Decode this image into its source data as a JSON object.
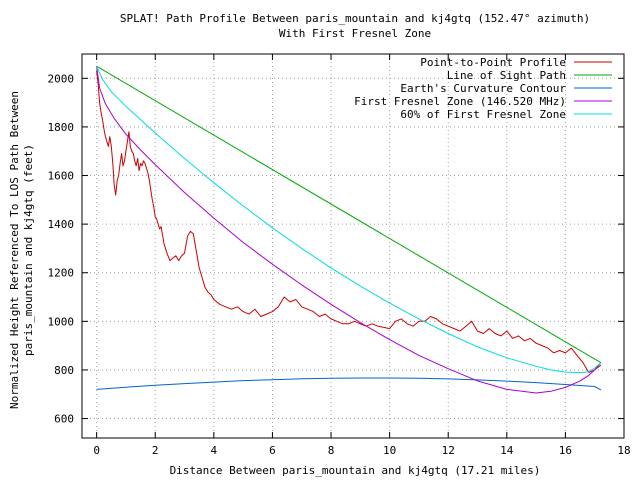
{
  "chart_data": {
    "type": "line",
    "title_line1": "SPLAT! Path Profile Between paris_mountain and kj4gtq (152.47° azimuth)",
    "title_line2": "With First Fresnel Zone",
    "xlabel": "Distance Between paris_mountain and kj4gtq (17.21 miles)",
    "ylabel_line1": "Normalized Height Referenced To LOS Path Between",
    "ylabel_line2": "paris_mountain and kj4gtq (feet)",
    "xlim": [
      -0.5,
      18
    ],
    "ylim": [
      520,
      2100
    ],
    "xticks": [
      0,
      2,
      4,
      6,
      8,
      10,
      12,
      14,
      16,
      18
    ],
    "yticks": [
      600,
      800,
      1000,
      1200,
      1400,
      1600,
      1800,
      2000
    ],
    "grid": true,
    "legend_position": "top-right",
    "series": [
      {
        "name": "Point-to-Point Profile",
        "color": "#cc0000",
        "x": [
          0.0,
          0.05,
          0.1,
          0.15,
          0.2,
          0.25,
          0.3,
          0.35,
          0.4,
          0.45,
          0.5,
          0.55,
          0.6,
          0.65,
          0.7,
          0.75,
          0.8,
          0.85,
          0.9,
          0.95,
          1.0,
          1.05,
          1.1,
          1.15,
          1.2,
          1.25,
          1.3,
          1.35,
          1.4,
          1.45,
          1.5,
          1.55,
          1.6,
          1.65,
          1.7,
          1.75,
          1.8,
          1.85,
          1.9,
          1.95,
          2.0,
          2.05,
          2.1,
          2.15,
          2.2,
          2.3,
          2.4,
          2.5,
          2.6,
          2.7,
          2.8,
          2.9,
          3.0,
          3.1,
          3.2,
          3.3,
          3.4,
          3.5,
          3.6,
          3.7,
          3.8,
          3.9,
          4.0,
          4.2,
          4.4,
          4.6,
          4.8,
          5.0,
          5.2,
          5.4,
          5.6,
          5.8,
          6.0,
          6.2,
          6.4,
          6.6,
          6.8,
          7.0,
          7.2,
          7.4,
          7.6,
          7.8,
          8.0,
          8.2,
          8.4,
          8.6,
          8.8,
          9.0,
          9.2,
          9.4,
          9.6,
          9.8,
          10.0,
          10.2,
          10.4,
          10.6,
          10.8,
          11.0,
          11.2,
          11.4,
          11.6,
          11.8,
          12.0,
          12.2,
          12.4,
          12.6,
          12.8,
          13.0,
          13.2,
          13.4,
          13.6,
          13.8,
          14.0,
          14.2,
          14.4,
          14.6,
          14.8,
          15.0,
          15.2,
          15.4,
          15.6,
          15.8,
          16.0,
          16.2,
          16.4,
          16.6,
          16.8,
          17.0,
          17.21
        ],
        "y": [
          2030,
          1980,
          1900,
          1860,
          1830,
          1790,
          1760,
          1740,
          1720,
          1760,
          1720,
          1650,
          1560,
          1520,
          1580,
          1600,
          1650,
          1690,
          1640,
          1660,
          1700,
          1740,
          1780,
          1720,
          1700,
          1690,
          1660,
          1640,
          1670,
          1620,
          1650,
          1640,
          1660,
          1650,
          1630,
          1610,
          1580,
          1540,
          1500,
          1470,
          1430,
          1420,
          1400,
          1380,
          1390,
          1320,
          1280,
          1250,
          1260,
          1270,
          1250,
          1270,
          1280,
          1350,
          1370,
          1360,
          1290,
          1220,
          1180,
          1140,
          1120,
          1110,
          1090,
          1070,
          1060,
          1050,
          1060,
          1040,
          1030,
          1050,
          1020,
          1030,
          1040,
          1060,
          1100,
          1080,
          1090,
          1060,
          1050,
          1040,
          1020,
          1030,
          1010,
          1000,
          990,
          990,
          1000,
          990,
          980,
          990,
          980,
          975,
          970,
          1000,
          1010,
          990,
          980,
          1000,
          1000,
          1020,
          1010,
          990,
          980,
          970,
          960,
          980,
          1000,
          960,
          950,
          970,
          950,
          940,
          960,
          930,
          940,
          920,
          930,
          910,
          900,
          890,
          870,
          880,
          870,
          890,
          860,
          830,
          790,
          800,
          820
        ]
      },
      {
        "name": "Line of Sight Path",
        "color": "#00aa00",
        "x": [
          0,
          17.21
        ],
        "y": [
          2050,
          830
        ]
      },
      {
        "name": "Earth's Curvature Contour",
        "color": "#0066cc",
        "x": [
          0,
          1,
          2,
          3,
          4,
          5,
          6,
          7,
          8,
          9,
          10,
          11,
          12,
          13,
          14,
          15,
          16,
          17,
          17.21
        ],
        "y": [
          720,
          729,
          737,
          744,
          750,
          756,
          760,
          764,
          766,
          767,
          767,
          766,
          763,
          759,
          754,
          748,
          740,
          732,
          718
        ]
      },
      {
        "name": "First Fresnel Zone (146.520 MHz)",
        "color": "#aa00cc",
        "x": [
          0,
          0.1,
          0.3,
          0.6,
          1,
          1.5,
          2,
          3,
          4,
          5,
          6,
          7,
          8,
          9,
          10,
          11,
          12,
          13,
          14,
          15,
          15.5,
          16,
          16.5,
          16.8,
          17,
          17.21
        ],
        "y": [
          2050,
          1960,
          1895,
          1835,
          1770,
          1705,
          1645,
          1530,
          1425,
          1325,
          1235,
          1150,
          1070,
          995,
          925,
          860,
          805,
          755,
          720,
          705,
          712,
          728,
          755,
          778,
          800,
          830
        ]
      },
      {
        "name": "60% of First Fresnel Zone",
        "color": "#00dddd",
        "x": [
          0,
          0.2,
          0.5,
          1,
          1.5,
          2,
          3,
          4,
          5,
          6,
          7,
          8,
          9,
          10,
          11,
          12,
          13,
          14,
          15,
          15.5,
          16,
          16.5,
          16.8,
          17,
          17.21
        ],
        "y": [
          2050,
          1995,
          1945,
          1885,
          1830,
          1775,
          1670,
          1570,
          1475,
          1385,
          1300,
          1220,
          1145,
          1075,
          1010,
          950,
          895,
          850,
          815,
          800,
          791,
          789,
          793,
          808,
          830
        ]
      }
    ]
  }
}
